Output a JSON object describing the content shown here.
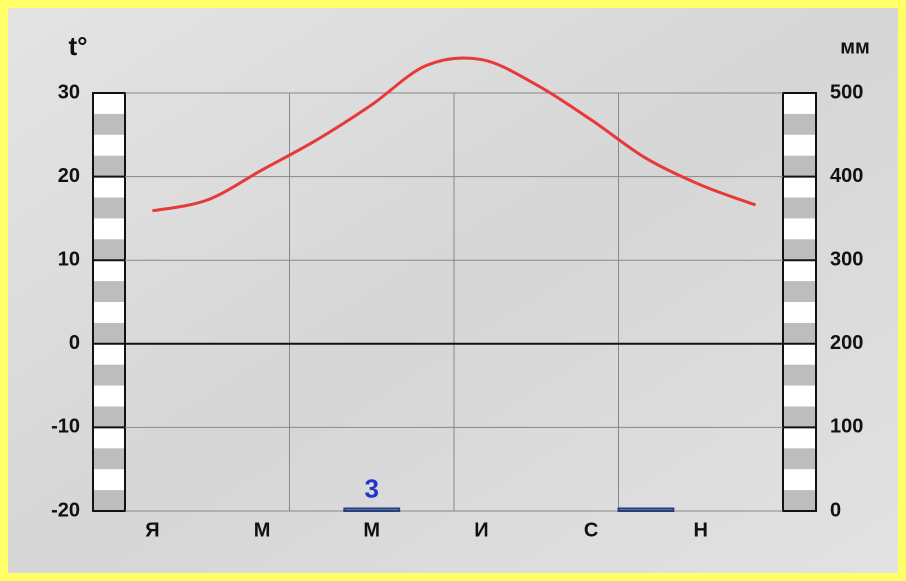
{
  "chart_data": {
    "type": "climatogram",
    "y_label": "t°",
    "y2_label": "мм",
    "categories": [
      "Я",
      null,
      "М",
      null,
      "М",
      null,
      "И",
      null,
      "С",
      null,
      "Н",
      null
    ],
    "series": [
      {
        "type": "line",
        "color": "#e8393a",
        "values": [
          15.9,
          17.2,
          20.8,
          24.4,
          28.6,
          33.3,
          34.0,
          31.0,
          26.8,
          22.2,
          19.0,
          16.6
        ]
      },
      {
        "type": "bar",
        "axis": "y2",
        "color": "#7b9fd6",
        "values": [
          0,
          0,
          0,
          0,
          3,
          0,
          0,
          0,
          0,
          3,
          0,
          0
        ],
        "value_labels": [
          null,
          null,
          null,
          null,
          "3",
          null,
          null,
          null,
          null,
          null,
          null,
          null
        ]
      }
    ],
    "ylim": [
      -20,
      30
    ],
    "yticks": [
      -20,
      -10,
      0,
      10,
      20,
      30
    ],
    "y2lim": [
      0,
      500
    ],
    "y2ticks": [
      0,
      100,
      200,
      300,
      400,
      500
    ],
    "grid": true
  }
}
